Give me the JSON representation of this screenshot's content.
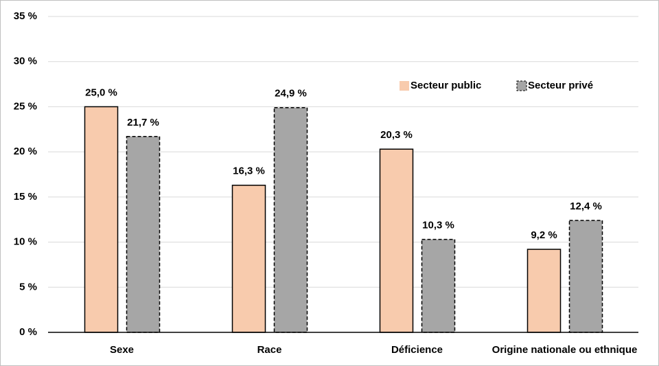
{
  "chart_data": {
    "type": "bar",
    "categories": [
      "Sexe",
      "Race",
      "Déficience",
      "Origine nationale ou ethnique"
    ],
    "series": [
      {
        "name": "Secteur public",
        "color": "#f8cbad",
        "linestyle": "solid",
        "values": [
          25.0,
          16.3,
          20.3,
          9.2
        ],
        "value_labels": [
          "25,0 %",
          "16,3 %",
          "20,3 %",
          "9,2 %"
        ]
      },
      {
        "name": "Secteur privé",
        "color": "#a6a6a6",
        "linestyle": "dashed",
        "values": [
          21.7,
          24.9,
          10.3,
          12.4
        ],
        "value_labels": [
          "21,7 %",
          "24,9 %",
          "10,3 %",
          "12,4 %"
        ]
      }
    ],
    "ylim": [
      0,
      35
    ],
    "yticks": [
      {
        "value": 0,
        "label": "0 %"
      },
      {
        "value": 5,
        "label": "5 %"
      },
      {
        "value": 10,
        "label": "10 %"
      },
      {
        "value": 15,
        "label": "15 %"
      },
      {
        "value": 20,
        "label": "20 %"
      },
      {
        "value": 25,
        "label": "25 %"
      },
      {
        "value": 30,
        "label": "30 %"
      },
      {
        "value": 35,
        "label": "35 %"
      }
    ],
    "grid": true,
    "legend": "upper-right"
  }
}
